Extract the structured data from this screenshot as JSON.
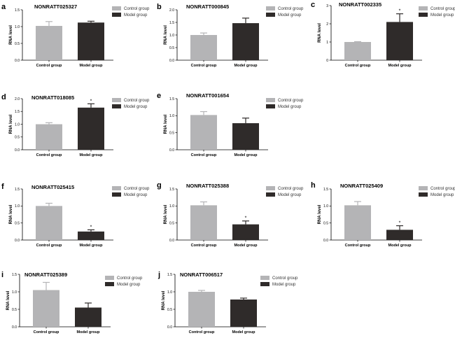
{
  "colors": {
    "control": "#b4b4b6",
    "model": "#2f2b2a",
    "axis": "#000000"
  },
  "chart_data": [
    {
      "panel": "a",
      "type": "bar",
      "title": "NONRATT025327",
      "ylabel": "RNA level",
      "ylim": [
        0,
        1.5
      ],
      "yticks": [
        "0.0",
        "0.5",
        "1.0",
        "1.5"
      ],
      "categories": [
        "Control group",
        "Model group"
      ],
      "values": [
        1.02,
        1.12
      ],
      "errors": [
        0.13,
        0.04
      ],
      "significance": [
        "",
        ""
      ],
      "legend": [
        "Control group",
        "Model group"
      ]
    },
    {
      "panel": "b",
      "type": "bar",
      "title": "NONRATT000845",
      "ylabel": "RNA level",
      "ylim": [
        0,
        2.0
      ],
      "yticks": [
        "0.0",
        "0.5",
        "1.0",
        "1.5",
        "2.0"
      ],
      "categories": [
        "Control group",
        "Model group"
      ],
      "values": [
        1.0,
        1.47
      ],
      "errors": [
        0.08,
        0.2
      ],
      "significance": [
        "",
        ""
      ],
      "legend": [
        "Control group",
        "Model group"
      ]
    },
    {
      "panel": "c",
      "type": "bar",
      "title": "NONRATT002335",
      "ylabel": "RNA level",
      "ylim": [
        0,
        3
      ],
      "yticks": [
        "0",
        "1",
        "2",
        "3"
      ],
      "categories": [
        "Control group",
        "Model group"
      ],
      "values": [
        1.0,
        2.1
      ],
      "errors": [
        0.02,
        0.45
      ],
      "significance": [
        "",
        "*"
      ],
      "legend": [
        "Control group",
        "Model group"
      ]
    },
    {
      "panel": "d",
      "type": "bar",
      "title": "NONRATT018085",
      "ylabel": "RNA level",
      "ylim": [
        0,
        2.0
      ],
      "yticks": [
        "0.0",
        "0.5",
        "1.0",
        "1.5",
        "2.0"
      ],
      "categories": [
        "Control group",
        "Model group"
      ],
      "values": [
        1.0,
        1.65
      ],
      "errors": [
        0.06,
        0.15
      ],
      "significance": [
        "",
        "*"
      ],
      "legend": [
        "Control group",
        "Model group"
      ]
    },
    {
      "panel": "e",
      "type": "bar",
      "title": "NONRATT001654",
      "ylabel": "RNA level",
      "ylim": [
        0,
        1.5
      ],
      "yticks": [
        "0.0",
        "0.5",
        "1.0",
        "1.5"
      ],
      "categories": [
        "Control group",
        "Model group"
      ],
      "values": [
        1.02,
        0.78
      ],
      "errors": [
        0.1,
        0.15
      ],
      "significance": [
        "",
        ""
      ],
      "legend": [
        "Control group",
        "Model group"
      ]
    },
    {
      "panel": "f",
      "type": "bar",
      "title": "NONRATT025415",
      "ylabel": "RNA level",
      "ylim": [
        0,
        1.5
      ],
      "yticks": [
        "0.0",
        "0.5",
        "1.0",
        "1.5"
      ],
      "categories": [
        "Control group",
        "Model group"
      ],
      "values": [
        1.0,
        0.25
      ],
      "errors": [
        0.08,
        0.05
      ],
      "significance": [
        "",
        "*"
      ],
      "legend": [
        "Control group",
        "Model group"
      ]
    },
    {
      "panel": "g",
      "type": "bar",
      "title": "NONRATT025388",
      "ylabel": "RNA level",
      "ylim": [
        0,
        1.5
      ],
      "yticks": [
        "0.0",
        "0.5",
        "1.0",
        "1.5"
      ],
      "categories": [
        "Control group",
        "Model group"
      ],
      "values": [
        1.02,
        0.46
      ],
      "errors": [
        0.1,
        0.1
      ],
      "significance": [
        "",
        "*"
      ],
      "legend": [
        "Control group",
        "Model group"
      ]
    },
    {
      "panel": "h",
      "type": "bar",
      "title": "NONRATT025409",
      "ylabel": "RNA level",
      "ylim": [
        0,
        1.5
      ],
      "yticks": [
        "0.0",
        "0.5",
        "1.0",
        "1.5"
      ],
      "categories": [
        "Control group",
        "Model group"
      ],
      "values": [
        1.02,
        0.3
      ],
      "errors": [
        0.11,
        0.12
      ],
      "significance": [
        "",
        "*"
      ],
      "legend": [
        "Control group",
        "Model group"
      ]
    },
    {
      "panel": "i",
      "type": "bar",
      "title": "NONRATT025389",
      "ylabel": "RNA level",
      "ylim": [
        0,
        1.5
      ],
      "yticks": [
        "0.0",
        "0.5",
        "1.0",
        "1.5"
      ],
      "categories": [
        "Control group",
        "Model group"
      ],
      "values": [
        1.05,
        0.55
      ],
      "errors": [
        0.22,
        0.13
      ],
      "significance": [
        "",
        ""
      ],
      "legend": [
        "Control group",
        "Model group"
      ]
    },
    {
      "panel": "j",
      "type": "bar",
      "title": "NONRATT006517",
      "ylabel": "RNA level",
      "ylim": [
        0,
        1.5
      ],
      "yticks": [
        "0.0",
        "0.5",
        "1.0",
        "1.5"
      ],
      "categories": [
        "Control group",
        "Model group"
      ],
      "values": [
        1.0,
        0.78
      ],
      "errors": [
        0.04,
        0.04
      ],
      "significance": [
        "",
        ""
      ],
      "legend": [
        "Control group",
        "Model group"
      ]
    }
  ]
}
